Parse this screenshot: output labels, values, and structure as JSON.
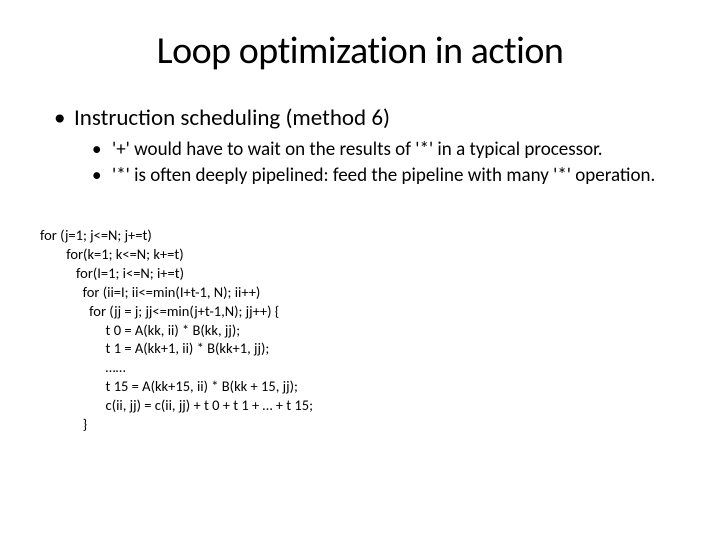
{
  "title": "Loop optimization in action",
  "bullets": {
    "l1": "Instruction scheduling (method 6)",
    "l2a": "'+' would have to wait on the results of '*' in a typical processor.",
    "l2b": "'*' is often deeply pipelined: feed the pipeline with many '*' operation."
  },
  "code": {
    "line1": "for (j=1; j<=N; j+=t)",
    "line2": "        for(k=1; k<=N; k+=t)",
    "line3": "           for(I=1; i<=N; i+=t)",
    "line4": "             for (ii=I; ii<=min(I+t-1, N); ii++)",
    "line5": "               for (jj = j; jj<=min(j+t-1,N); jj++) {",
    "line6": "                    t 0 = A(kk, ii) * B(kk, jj);",
    "line7": "                    t 1 = A(kk+1, ii) * B(kk+1, jj);",
    "line8": "                    ……",
    "line9": "                    t 15 = A(kk+15, ii) * B(kk + 15, jj);",
    "line10": "                    c(ii, jj) = c(ii, jj) + t 0 + t 1 + … + t 15;",
    "line11": "             }"
  }
}
